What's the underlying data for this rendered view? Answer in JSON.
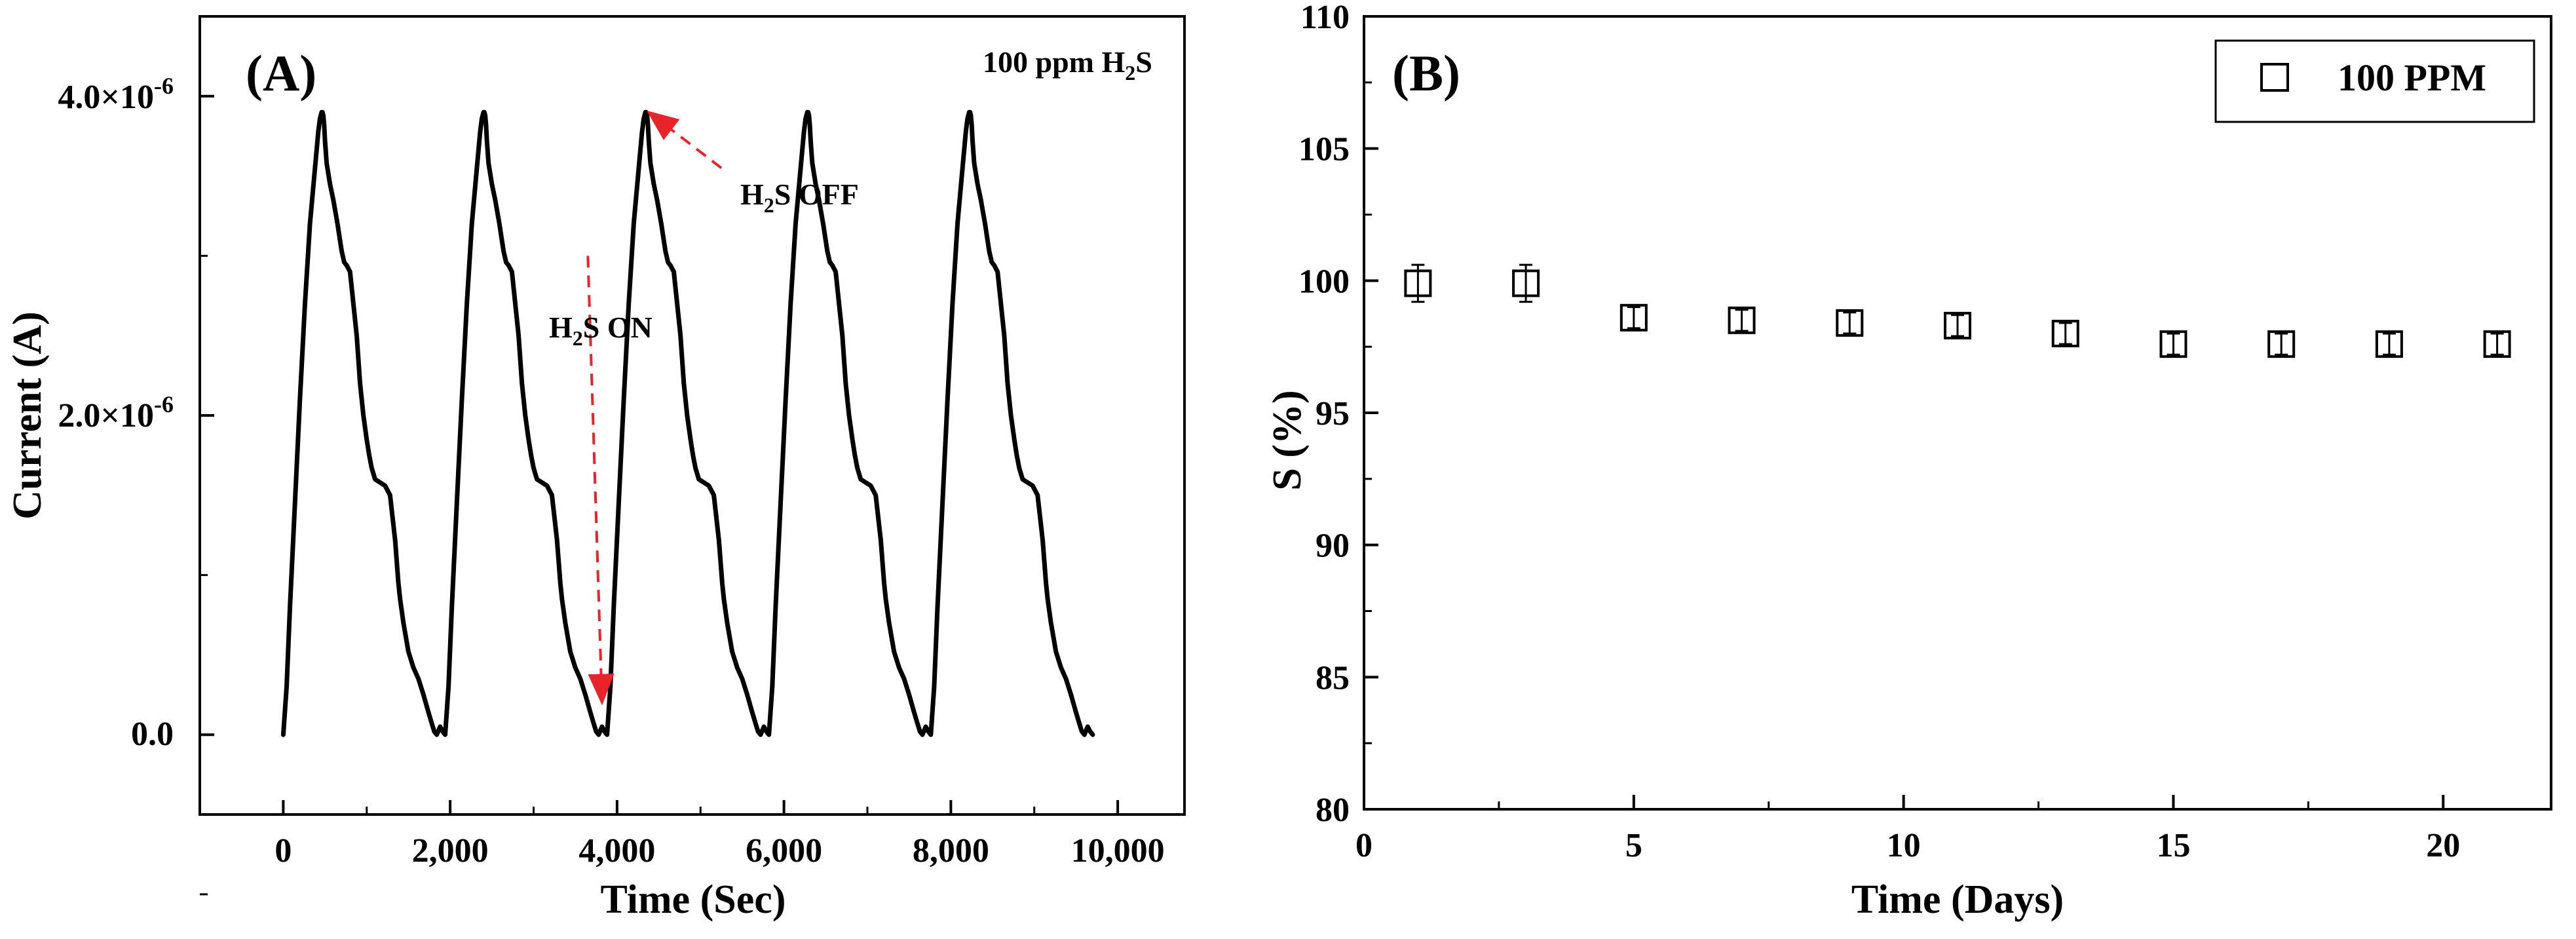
{
  "chart_data": [
    {
      "panel_label": "(A)",
      "type": "line",
      "title": "",
      "annotation": {
        "main": "100 ppm H",
        "sub": "2",
        "tail": "S"
      },
      "xlabel": "Time (Sec)",
      "ylabel": "Current (A)",
      "xlim": [
        -1000,
        10800
      ],
      "ylim": [
        -5e-07,
        4.5e-06
      ],
      "xticks": [
        0,
        2000,
        4000,
        6000,
        8000,
        10000
      ],
      "xtick_labels": [
        "0",
        "2,000",
        "4,000",
        "6,000",
        "8,000",
        "10,000"
      ],
      "yticks": [
        0,
        2e-06,
        4e-06
      ],
      "ytick_labels": [
        {
          "main": "0.0",
          "exp": ""
        },
        {
          "main": "2.0×10",
          "exp": "-6"
        },
        {
          "main": "4.0×10",
          "exp": "-6"
        }
      ],
      "series": [
        {
          "name": "Current",
          "color": "#000000",
          "cycle_period": 1940,
          "cycles": 5,
          "cycle_shape_x": [
            0,
            40,
            80,
            140,
            200,
            260,
            320,
            380,
            420,
            440,
            460,
            470,
            480,
            490,
            500,
            520,
            560,
            600,
            650,
            700,
            730,
            760,
            800,
            880,
            920,
            960,
            1000,
            1030,
            1060,
            1100,
            1160,
            1220,
            1280,
            1340,
            1380,
            1400,
            1440,
            1500,
            1560,
            1620,
            1680,
            1740,
            1780,
            1810,
            1840,
            1880,
            1910,
            1940
          ],
          "cycle_shape_y": [
            0,
            3e-07,
            8e-07,
            1.45e-06,
            2.1e-06,
            2.7e-06,
            3.2e-06,
            3.55e-06,
            3.78e-06,
            3.86e-06,
            3.9e-06,
            3.9e-06,
            3.88e-06,
            3.82e-06,
            3.72e-06,
            3.58e-06,
            3.45e-06,
            3.35e-06,
            3.2e-06,
            3.03e-06,
            2.96e-06,
            2.94e-06,
            2.9e-06,
            2.5e-06,
            2.2e-06,
            2e-06,
            1.85e-06,
            1.75e-06,
            1.67e-06,
            1.6e-06,
            1.58e-06,
            1.56e-06,
            1.5e-06,
            1.22e-06,
            9.5e-07,
            8.5e-07,
            7e-07,
            5.2e-07,
            4.2e-07,
            3.5e-07,
            2.5e-07,
            1.4e-07,
            7e-08,
            2e-08,
            0,
            5e-08,
            2e-08,
            0
          ]
        }
      ],
      "arrows": [
        {
          "label_main": "H",
          "label_sub": "2",
          "label_tail": "S ON",
          "color": "#e8232a",
          "from": [
            3650,
            3e-06
          ],
          "to": [
            3820,
            2e-07
          ]
        },
        {
          "label_main": "H",
          "label_sub": "2",
          "label_tail": "S OFF",
          "color": "#e8232a",
          "from": [
            5250,
            3.55e-06
          ],
          "to": [
            4380,
            3.9e-06
          ]
        }
      ]
    },
    {
      "panel_label": "(B)",
      "type": "scatter",
      "title": "",
      "xlabel": "Time (Days)",
      "ylabel": "S (%)",
      "xlim": [
        0,
        22
      ],
      "ylim": [
        80,
        110
      ],
      "xticks": [
        0,
        5,
        10,
        15,
        20
      ],
      "xtick_labels": [
        "0",
        "5",
        "10",
        "15",
        "20"
      ],
      "yticks": [
        80,
        85,
        90,
        95,
        100,
        105,
        110
      ],
      "ytick_labels": [
        "80",
        "85",
        "90",
        "95",
        "100",
        "105",
        "110"
      ],
      "legend": {
        "label": "100 PPM",
        "position": "top-right"
      },
      "series": [
        {
          "name": "100 PPM",
          "marker": "open-square",
          "color": "#000000",
          "x": [
            1,
            3,
            5,
            7,
            9,
            11,
            13,
            15,
            17,
            19,
            21
          ],
          "y": [
            99.9,
            99.9,
            98.6,
            98.5,
            98.4,
            98.3,
            98.0,
            97.6,
            97.6,
            97.6,
            97.6
          ],
          "err": [
            0.7,
            0.7,
            0.4,
            0.4,
            0.4,
            0.4,
            0.4,
            0.4,
            0.4,
            0.4,
            0.4
          ]
        }
      ]
    }
  ]
}
